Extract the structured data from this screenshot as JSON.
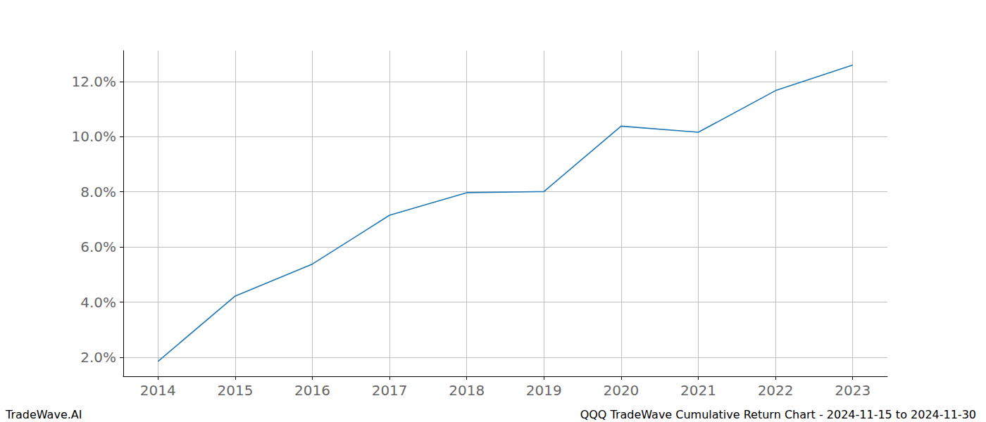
{
  "chart_data": {
    "type": "line",
    "title": "QQQ TradeWave Cumulative Return Chart - 2024-11-15 to 2024-11-30",
    "annotations": [
      "TradeWave.AI"
    ],
    "x": [
      2014,
      2015,
      2016,
      2017,
      2018,
      2019,
      2020,
      2021,
      2022,
      2023
    ],
    "values": [
      1.85,
      4.22,
      5.38,
      7.15,
      7.97,
      8.01,
      10.38,
      10.16,
      11.67,
      12.6
    ],
    "color": "#1f77b4",
    "xlim": [
      2013.55,
      2023.45
    ],
    "xticks": [
      2014,
      2015,
      2016,
      2017,
      2018,
      2019,
      2020,
      2021,
      2022,
      2023
    ],
    "ylim": [
      1.31,
      13.12
    ],
    "yticks": [
      {
        "value": 2,
        "label": "2.0%"
      },
      {
        "value": 4,
        "label": "4.0%"
      },
      {
        "value": 6,
        "label": "6.0%"
      },
      {
        "value": 8,
        "label": "8.0%"
      },
      {
        "value": 10,
        "label": "10.0%"
      },
      {
        "value": 12,
        "label": "12.0%"
      }
    ],
    "grid": true
  }
}
